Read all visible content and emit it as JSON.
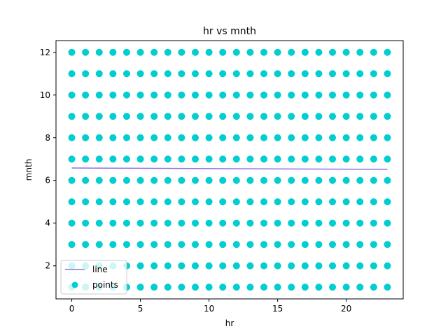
{
  "chart_data": {
    "type": "scatter",
    "title": "hr vs mnth",
    "xlabel": "hr",
    "ylabel": "mnth",
    "xlim": [
      -1.15,
      24.15
    ],
    "ylim": [
      0.45,
      12.55
    ],
    "xticks": [
      0,
      5,
      10,
      15,
      20
    ],
    "yticks": [
      2,
      4,
      6,
      8,
      10,
      12
    ],
    "grid": false,
    "legend_placement": "lower-left",
    "colors": {
      "points": "#00ced1",
      "line": "#9370db",
      "axes": "#000000"
    },
    "series": [
      {
        "name": "points",
        "kind": "scatter",
        "x_range": [
          0,
          23
        ],
        "y_range": [
          1,
          12
        ],
        "note_grid": "one point at every integer hr 0-23 for every integer mnth 1-12"
      },
      {
        "name": "line",
        "kind": "line",
        "x": [
          0,
          23
        ],
        "y": [
          6.58,
          6.52
        ]
      }
    ],
    "legend": [
      "line",
      "points"
    ]
  }
}
